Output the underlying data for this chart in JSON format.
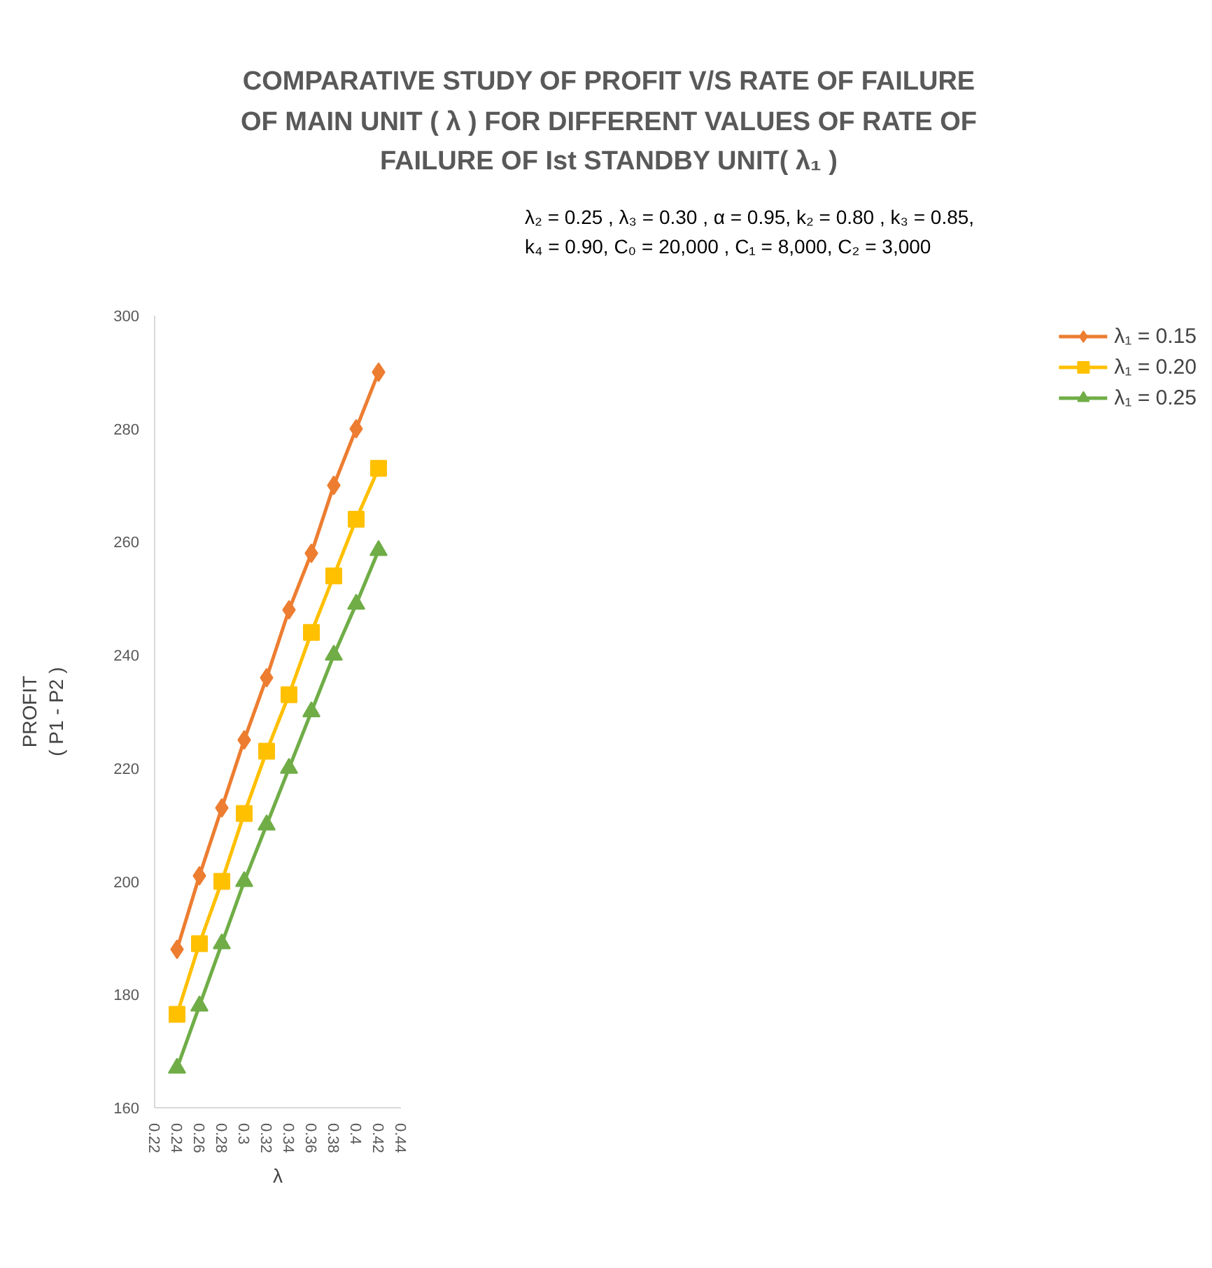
{
  "chart_data": {
    "type": "line",
    "title": "COMPARATIVE STUDY OF PROFIT V/S RATE OF FAILURE\nOF MAIN UNIT ( λ ) FOR  DIFFERENT VALUES OF RATE  OF\nFAILURE OF Ist  STANDBY UNIT( λ₁ )",
    "xlabel": "λ",
    "ylabel": "PROFIT\n( P1 - P2 )",
    "annotations": [
      "λ₂ = 0.25 , λ₃ = 0.30 , α = 0.95, k₂  = 0.80 , k₃ = 0.85,\nk₄ = 0.90, C₀ = 20,000 , C₁ = 8,000, C₂ = 3,000"
    ],
    "x": [
      0.24,
      0.26,
      0.28,
      0.3,
      0.32,
      0.34,
      0.36,
      0.38,
      0.4,
      0.42
    ],
    "series": [
      {
        "name": "λ₁ = 0.15",
        "color": "#ed7d31",
        "marker": "diamond",
        "values": [
          188,
          201,
          213,
          225,
          236,
          248,
          258,
          270,
          280,
          290
        ]
      },
      {
        "name": "λ₁ = 0.20",
        "color": "#ffc000",
        "marker": "square",
        "values": [
          176.5,
          189,
          200,
          212,
          223,
          233,
          244,
          254,
          264,
          273
        ]
      },
      {
        "name": "λ₁ = 0.25",
        "color": "#70ad47",
        "marker": "triangle",
        "values": [
          167,
          178,
          189,
          200,
          210,
          220,
          230,
          240,
          249,
          258.5
        ]
      }
    ],
    "xlim": [
      0.22,
      0.44
    ],
    "xticks": [
      {
        "value": 0.22,
        "label": "0.22"
      },
      {
        "value": 0.24,
        "label": "0.24"
      },
      {
        "value": 0.26,
        "label": "0.26"
      },
      {
        "value": 0.28,
        "label": "0.28"
      },
      {
        "value": 0.3,
        "label": "0.3"
      },
      {
        "value": 0.32,
        "label": "0.32"
      },
      {
        "value": 0.34,
        "label": "0.34"
      },
      {
        "value": 0.36,
        "label": "0.36"
      },
      {
        "value": 0.38,
        "label": "0.38"
      },
      {
        "value": 0.4,
        "label": "0.4"
      },
      {
        "value": 0.42,
        "label": "0.42"
      },
      {
        "value": 0.44,
        "label": "0.44"
      }
    ],
    "ylim": [
      160,
      300
    ],
    "yticks": [
      160,
      180,
      200,
      220,
      240,
      260,
      280,
      300
    ],
    "grid": false,
    "legend": "right",
    "line_style": "solid"
  }
}
